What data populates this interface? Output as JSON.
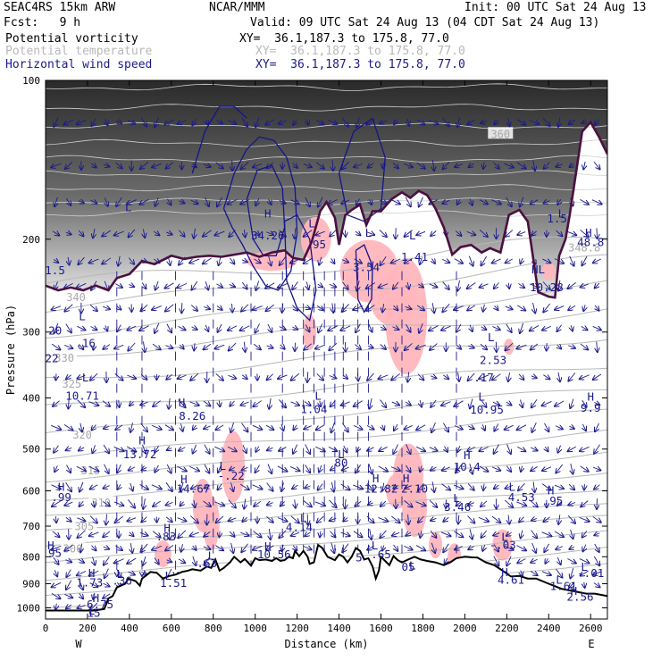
{
  "header": {
    "model": "SEAC4RS 15km ARW",
    "center": "NCAR/MMM",
    "init": "Init: 00 UTC Sat 24 Aug 13",
    "fcst": "Fcst:   9 h",
    "valid": "Valid: 09 UTC Sat 24 Aug 13 (04 CDT Sat 24 Aug 13)",
    "fields": [
      {
        "name": "Potential vorticity",
        "xy": "XY=  36.1,187.3 to 175.8, 77.0",
        "color": "#000000"
      },
      {
        "name": "Potential temperature",
        "xy": "XY=  36.1,187.3 to 175.8, 77.0",
        "color": "#b8b8b8"
      },
      {
        "name": "Horizontal wind speed",
        "xy": "XY=  36.1,187.3 to 175.8, 77.0",
        "color": "#1a1a8c"
      }
    ]
  },
  "chart_data": {
    "type": "cross-section",
    "xlabel": "Distance (km)",
    "ylabel": "Pressure (hPa)",
    "xlim": [
      0,
      2680
    ],
    "ylim": [
      1050,
      100
    ],
    "y_log_scale": true,
    "x_ticks": [
      0,
      200,
      400,
      600,
      800,
      1000,
      1200,
      1400,
      1600,
      1800,
      2000,
      2200,
      2400,
      2600
    ],
    "y_ticks": [
      100,
      200,
      300,
      400,
      500,
      600,
      700,
      800,
      900,
      1000
    ],
    "end_labels": {
      "left": "W",
      "right": "E"
    },
    "theta_contours": [
      {
        "label": "300",
        "x": 130,
        "p": 770
      },
      {
        "label": "305",
        "x": 185,
        "p": 698
      },
      {
        "label": "310",
        "x": 265,
        "p": 630
      },
      {
        "label": "315",
        "x": 215,
        "p": 547
      },
      {
        "label": "320",
        "x": 175,
        "p": 468
      },
      {
        "label": "325",
        "x": 125,
        "p": 375
      },
      {
        "label": "330",
        "x": 90,
        "p": 335
      },
      {
        "label": "340",
        "x": 145,
        "p": 257
      },
      {
        "label": "348.8",
        "x": 2570,
        "p": 207
      },
      {
        "label": "360",
        "x": 2170,
        "p": 126
      }
    ],
    "wind_labels": [
      {
        "t": "L",
        "x": 395,
        "p": 177
      },
      {
        "t": "H",
        "x": 1060,
        "p": 182
      },
      {
        "t": "34.26",
        "x": 1060,
        "p": 200
      },
      {
        "t": "L",
        "x": 1270,
        "p": 190
      },
      {
        "t": ".95",
        "x": 1290,
        "p": 208
      },
      {
        "t": "L",
        "x": 1540,
        "p": 198
      },
      {
        "t": "3.54",
        "x": 1530,
        "p": 230
      },
      {
        "t": "L",
        "x": 1750,
        "p": 200
      },
      {
        "t": "1.41",
        "x": 1760,
        "p": 220
      },
      {
        "t": "L",
        "x": 2460,
        "p": 182
      },
      {
        "t": "1.5",
        "x": 2440,
        "p": 186
      },
      {
        "t": "H",
        "x": 2590,
        "p": 198
      },
      {
        "t": "48.8",
        "x": 2600,
        "p": 206
      },
      {
        "t": "HL",
        "x": 2350,
        "p": 232
      },
      {
        "t": "10.28",
        "x": 2390,
        "p": 251
      },
      {
        "t": "1.5",
        "x": 45,
        "p": 233
      },
      {
        "t": "L",
        "x": 175,
        "p": 285
      },
      {
        "t": ".20",
        "x": 30,
        "p": 303
      },
      {
        "t": ".16",
        "x": 190,
        "p": 320
      },
      {
        "t": "22",
        "x": 30,
        "p": 342
      },
      {
        "t": "L",
        "x": 2125,
        "p": 312
      },
      {
        "t": "2.53",
        "x": 2135,
        "p": 345
      },
      {
        "t": ".17",
        "x": 2090,
        "p": 372
      },
      {
        "t": "L",
        "x": 190,
        "p": 372
      },
      {
        "t": "10.71",
        "x": 175,
        "p": 403
      },
      {
        "t": "L",
        "x": 1300,
        "p": 403
      },
      {
        "t": "1.04",
        "x": 1280,
        "p": 427
      },
      {
        "t": "H",
        "x": 650,
        "p": 415
      },
      {
        "t": "8.26",
        "x": 700,
        "p": 440
      },
      {
        "t": "L",
        "x": 2080,
        "p": 405
      },
      {
        "t": "10.95",
        "x": 2105,
        "p": 428
      },
      {
        "t": "H",
        "x": 2600,
        "p": 405
      },
      {
        "t": "9.9",
        "x": 2600,
        "p": 425
      },
      {
        "t": "H",
        "x": 460,
        "p": 490
      },
      {
        "t": "13.72",
        "x": 450,
        "p": 520
      },
      {
        "t": "L",
        "x": 1410,
        "p": 520
      },
      {
        "t": "80",
        "x": 1410,
        "p": 540
      },
      {
        "t": "H",
        "x": 2010,
        "p": 522
      },
      {
        "t": "10.4",
        "x": 2010,
        "p": 550
      },
      {
        "t": "L",
        "x": 845,
        "p": 548
      },
      {
        "t": "-.22",
        "x": 885,
        "p": 572
      },
      {
        "t": "H",
        "x": 660,
        "p": 580
      },
      {
        "t": "14.67",
        "x": 705,
        "p": 605
      },
      {
        "t": "H",
        "x": 1575,
        "p": 578
      },
      {
        "t": "12.82",
        "x": 1600,
        "p": 605
      },
      {
        "t": "H",
        "x": 1720,
        "p": 578
      },
      {
        "t": "2.10",
        "x": 1760,
        "p": 605
      },
      {
        "t": "H",
        "x": 75,
        "p": 600
      },
      {
        "t": ".99",
        "x": 75,
        "p": 628
      },
      {
        "t": "L",
        "x": 2225,
        "p": 600
      },
      {
        "t": "4.53",
        "x": 2270,
        "p": 628
      },
      {
        "t": "H",
        "x": 2410,
        "p": 610
      },
      {
        "t": ".95",
        "x": 2420,
        "p": 637
      },
      {
        "t": "L",
        "x": 1960,
        "p": 630
      },
      {
        "t": "3.46",
        "x": 1965,
        "p": 655
      },
      {
        "t": "L",
        "x": 1230,
        "p": 688
      },
      {
        "t": "4.14",
        "x": 1210,
        "p": 715
      },
      {
        "t": "H",
        "x": 580,
        "p": 718
      },
      {
        "t": ".83",
        "x": 575,
        "p": 745
      },
      {
        "t": "L",
        "x": 2190,
        "p": 747
      },
      {
        "t": "-.03",
        "x": 2180,
        "p": 773
      },
      {
        "t": "H",
        "x": 25,
        "p": 775
      },
      {
        "t": "95",
        "x": 45,
        "p": 800
      },
      {
        "t": "H",
        "x": 1060,
        "p": 778
      },
      {
        "t": "10.56",
        "x": 1090,
        "p": 805
      },
      {
        "t": "L",
        "x": 1570,
        "p": 775
      },
      {
        "t": ".65",
        "x": 1600,
        "p": 805
      },
      {
        "t": "5",
        "x": 1495,
        "p": 816
      },
      {
        "t": "L",
        "x": 790,
        "p": 810
      },
      {
        "t": ".63",
        "x": 770,
        "p": 838
      },
      {
        "t": "L",
        "x": 1750,
        "p": 845
      },
      {
        "t": "05",
        "x": 1730,
        "p": 850
      },
      {
        "t": "L",
        "x": 2570,
        "p": 850
      },
      {
        "t": "-.01",
        "x": 2600,
        "p": 875
      },
      {
        "t": "H",
        "x": 220,
        "p": 875
      },
      {
        "t": "1.73",
        "x": 210,
        "p": 910
      },
      {
        "t": "L",
        "x": 355,
        "p": 878
      },
      {
        "t": ".36",
        "x": 365,
        "p": 903
      },
      {
        "t": "L",
        "x": 585,
        "p": 885
      },
      {
        "t": "1.51",
        "x": 610,
        "p": 912
      },
      {
        "t": "H",
        "x": 2190,
        "p": 870
      },
      {
        "t": "4.61",
        "x": 2220,
        "p": 900
      },
      {
        "t": "L",
        "x": 2450,
        "p": 900
      },
      {
        "t": "1.61",
        "x": 2470,
        "p": 925
      },
      {
        "t": "H",
        "x": 2520,
        "p": 945
      },
      {
        "t": "2.56",
        "x": 2550,
        "p": 970
      },
      {
        "t": "H",
        "x": 240,
        "p": 975
      },
      {
        "t": "6.75",
        "x": 260,
        "p": 1002
      },
      {
        "t": "L",
        "x": 220,
        "p": 1030
      },
      {
        "t": "15",
        "x": 230,
        "p": 1040
      }
    ],
    "terrain": [
      [
        0,
        1012
      ],
      [
        180,
        1012
      ],
      [
        230,
        1012
      ],
      [
        280,
        1005
      ],
      [
        300,
        960
      ],
      [
        320,
        950
      ],
      [
        340,
        915
      ],
      [
        380,
        900
      ],
      [
        395,
        880
      ],
      [
        430,
        890
      ],
      [
        450,
        908
      ],
      [
        460,
        880
      ],
      [
        480,
        868
      ],
      [
        500,
        855
      ],
      [
        530,
        858
      ],
      [
        560,
        880
      ],
      [
        590,
        870
      ],
      [
        620,
        865
      ],
      [
        650,
        855
      ],
      [
        680,
        850
      ],
      [
        700,
        845
      ],
      [
        740,
        850
      ],
      [
        770,
        835
      ],
      [
        790,
        840
      ],
      [
        810,
        810
      ],
      [
        830,
        850
      ],
      [
        850,
        840
      ],
      [
        880,
        820
      ],
      [
        900,
        800
      ],
      [
        930,
        820
      ],
      [
        950,
        808
      ],
      [
        980,
        832
      ],
      [
        1000,
        805
      ],
      [
        1020,
        812
      ],
      [
        1050,
        810
      ],
      [
        1080,
        815
      ],
      [
        1100,
        805
      ],
      [
        1120,
        815
      ],
      [
        1140,
        812
      ],
      [
        1160,
        800
      ],
      [
        1180,
        805
      ],
      [
        1190,
        780
      ],
      [
        1210,
        798
      ],
      [
        1230,
        780
      ],
      [
        1250,
        800
      ],
      [
        1260,
        825
      ],
      [
        1280,
        820
      ],
      [
        1300,
        760
      ],
      [
        1320,
        770
      ],
      [
        1345,
        800
      ],
      [
        1380,
        812
      ],
      [
        1400,
        792
      ],
      [
        1420,
        800
      ],
      [
        1440,
        820
      ],
      [
        1460,
        800
      ],
      [
        1480,
        770
      ],
      [
        1500,
        780
      ],
      [
        1520,
        810
      ],
      [
        1540,
        805
      ],
      [
        1560,
        835
      ],
      [
        1575,
        880
      ],
      [
        1590,
        850
      ],
      [
        1600,
        800
      ],
      [
        1620,
        815
      ],
      [
        1640,
        830
      ],
      [
        1660,
        798
      ],
      [
        1680,
        812
      ],
      [
        1700,
        820
      ],
      [
        1730,
        810
      ],
      [
        1760,
        800
      ],
      [
        1790,
        810
      ],
      [
        1820,
        815
      ],
      [
        1860,
        820
      ],
      [
        1900,
        830
      ],
      [
        1930,
        820
      ],
      [
        1960,
        805
      ],
      [
        2000,
        800
      ],
      [
        2030,
        802
      ],
      [
        2060,
        803
      ],
      [
        2100,
        820
      ],
      [
        2140,
        830
      ],
      [
        2180,
        850
      ],
      [
        2220,
        872
      ],
      [
        2260,
        870
      ],
      [
        2300,
        880
      ],
      [
        2340,
        880
      ],
      [
        2400,
        900
      ],
      [
        2460,
        920
      ],
      [
        2520,
        930
      ],
      [
        2580,
        940
      ],
      [
        2620,
        940
      ],
      [
        2680,
        950
      ]
    ],
    "pv_contour": [
      [
        0,
        245
      ],
      [
        60,
        250
      ],
      [
        120,
        247
      ],
      [
        180,
        250
      ],
      [
        240,
        245
      ],
      [
        300,
        250
      ],
      [
        340,
        237
      ],
      [
        400,
        233
      ],
      [
        460,
        220
      ],
      [
        520,
        223
      ],
      [
        600,
        215
      ],
      [
        660,
        218
      ],
      [
        720,
        216
      ],
      [
        780,
        215
      ],
      [
        840,
        216
      ],
      [
        900,
        214
      ],
      [
        960,
        212
      ],
      [
        1020,
        216
      ],
      [
        1080,
        212
      ],
      [
        1140,
        210
      ],
      [
        1180,
        217
      ],
      [
        1230,
        219
      ],
      [
        1270,
        202
      ],
      [
        1310,
        177
      ],
      [
        1340,
        170
      ],
      [
        1380,
        182
      ],
      [
        1400,
        205
      ],
      [
        1430,
        180
      ],
      [
        1460,
        176
      ],
      [
        1500,
        172
      ],
      [
        1530,
        188
      ],
      [
        1560,
        177
      ],
      [
        1600,
        177
      ],
      [
        1650,
        168
      ],
      [
        1700,
        163
      ],
      [
        1740,
        167
      ],
      [
        1780,
        162
      ],
      [
        1820,
        165
      ],
      [
        1860,
        175
      ],
      [
        1900,
        190
      ],
      [
        1940,
        214
      ],
      [
        1980,
        207
      ],
      [
        2030,
        205
      ],
      [
        2080,
        212
      ],
      [
        2120,
        208
      ],
      [
        2170,
        212
      ],
      [
        2210,
        180
      ],
      [
        2260,
        176
      ],
      [
        2300,
        185
      ],
      [
        2350,
        252
      ],
      [
        2400,
        257
      ],
      [
        2430,
        258
      ],
      [
        2450,
        215
      ],
      [
        2480,
        200
      ],
      [
        2500,
        180
      ],
      [
        2530,
        150
      ],
      [
        2560,
        125
      ],
      [
        2600,
        120
      ],
      [
        2640,
        128
      ],
      [
        2680,
        138
      ]
    ],
    "pv_contour_color": "#4a1040",
    "theta_contour_color": "#b8b8b8",
    "wind_contour_color": "#14148c",
    "stratosphere_shading": "greyscale",
    "pv_highlight_color": "#ffb6bd"
  }
}
